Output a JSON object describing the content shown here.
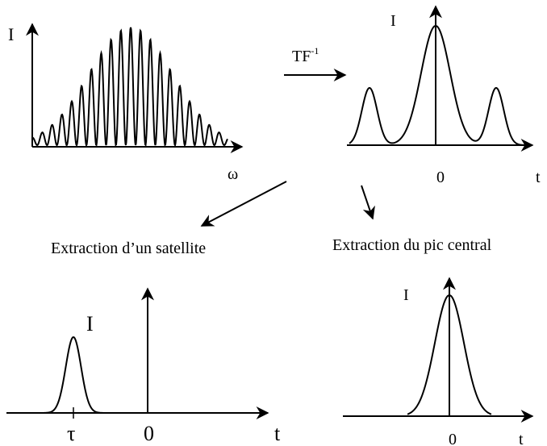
{
  "panels": {
    "spectrum": {
      "y_label": "I",
      "x_label": "ω"
    },
    "inverse_ft": {
      "y_label": "I",
      "zero_label": "0",
      "x_label": "t"
    },
    "satellite": {
      "y_label": "I",
      "tau_label": "τ",
      "zero_label": "0",
      "x_label": "t"
    },
    "central": {
      "y_label": "I",
      "zero_label": "0",
      "x_label": "t"
    }
  },
  "arrows": {
    "transform_label_base": "TF",
    "transform_label_exp": "-1"
  },
  "captions": {
    "satellite": "Extraction d’un satellite",
    "central": "Extraction du pic central"
  },
  "colors": {
    "stroke": "#000000",
    "background": "#ffffff"
  }
}
